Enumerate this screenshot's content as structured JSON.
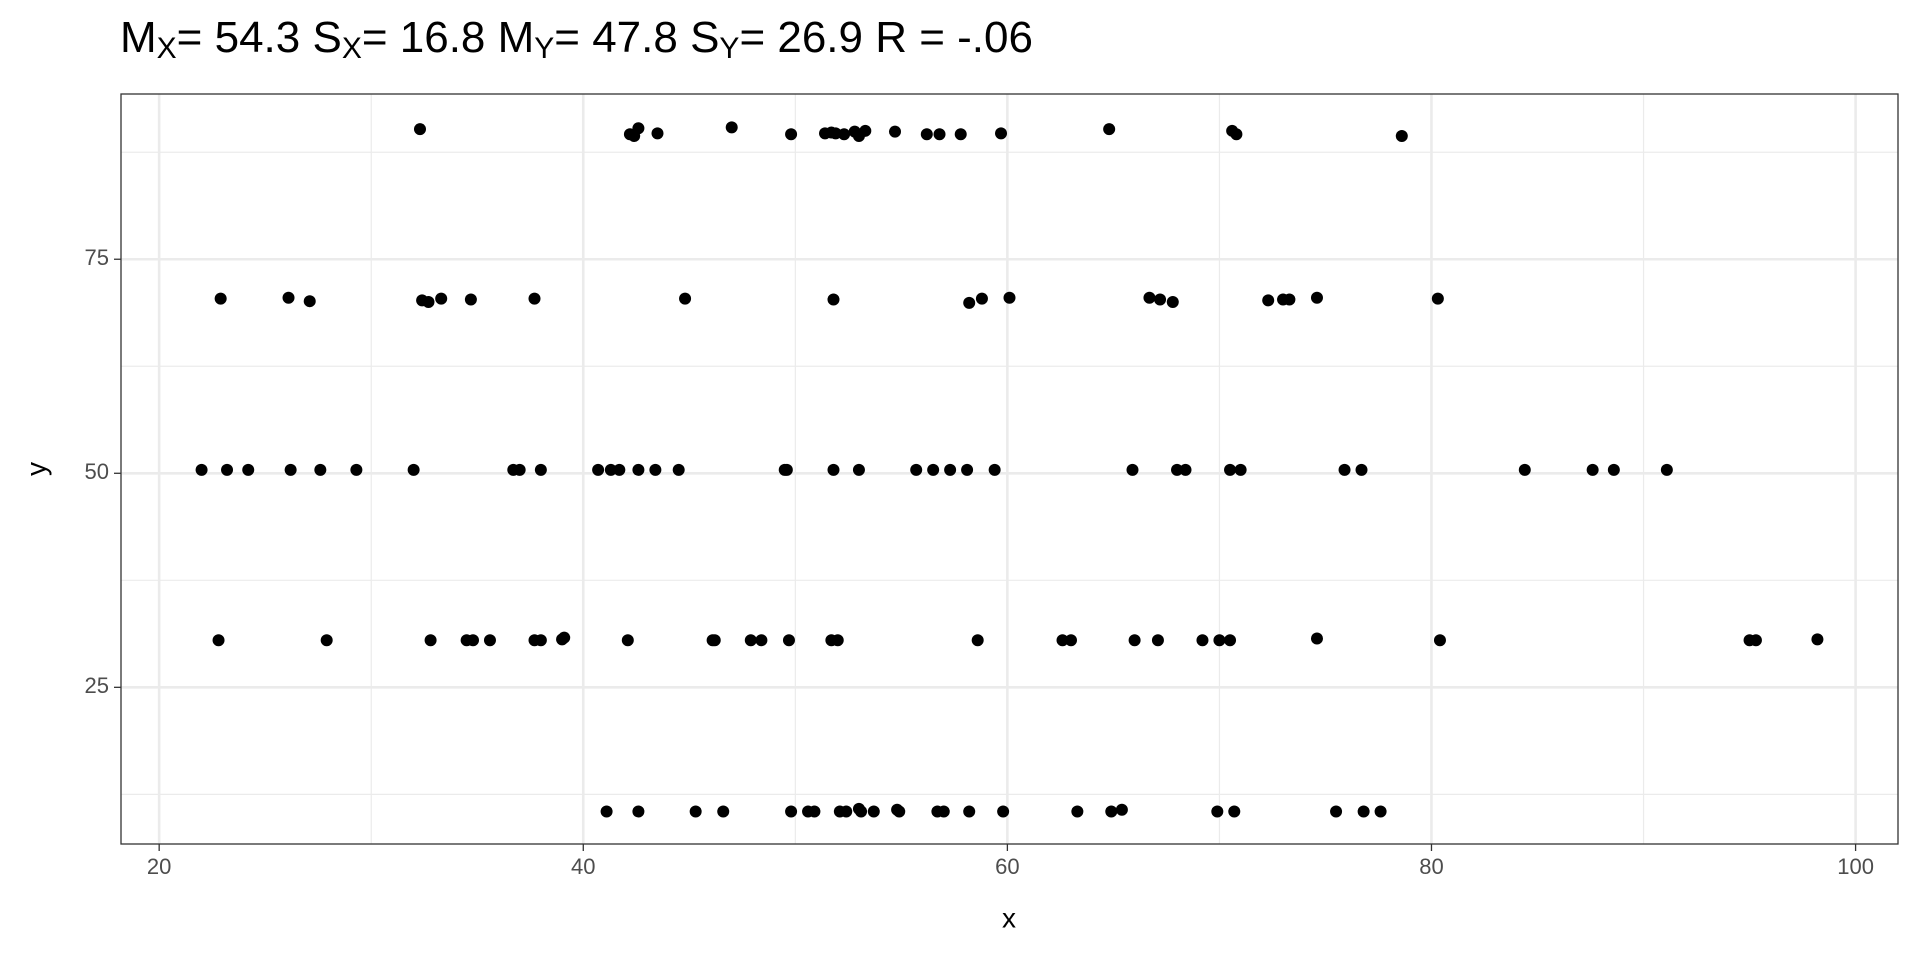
{
  "chart_data": {
    "type": "scatter",
    "title_segments": [
      {
        "text": "M"
      },
      {
        "sub": "X"
      },
      {
        "text": "= 54.3 S"
      },
      {
        "sub": "X"
      },
      {
        "text": "= 16.8 M"
      },
      {
        "sub": "Y"
      },
      {
        "text": "= 47.8 S"
      },
      {
        "sub": "Y"
      },
      {
        "text": "= 26.9 R = -.06"
      }
    ],
    "x_label": "x",
    "y_label": "y",
    "xlim": [
      18.2,
      102.0
    ],
    "ylim": [
      6.7,
      94.3
    ],
    "xticks": [
      20,
      40,
      60,
      80,
      100
    ],
    "yticks": [
      25,
      50,
      75
    ],
    "x_minor_grid": [
      30,
      50,
      70,
      90
    ],
    "y_minor_grid": [
      12.5,
      37.5,
      62.5,
      87.5
    ],
    "grid": true,
    "color": "#000000",
    "x": [
      32.3,
      42.2,
      42.4,
      42.6,
      43.5,
      47.0,
      49.8,
      51.4,
      51.7,
      51.9,
      52.3,
      52.8,
      53.0,
      53.3,
      54.7,
      56.2,
      56.8,
      57.8,
      59.7,
      64.8,
      70.6,
      70.8,
      78.6,
      22.9,
      26.1,
      27.1,
      32.4,
      32.7,
      33.3,
      34.7,
      37.7,
      44.8,
      51.8,
      58.2,
      58.8,
      60.1,
      66.7,
      67.2,
      67.8,
      72.3,
      73.0,
      73.3,
      74.6,
      80.3,
      22.0,
      23.2,
      24.2,
      26.2,
      27.6,
      29.3,
      32.0,
      36.7,
      37.0,
      38.0,
      40.7,
      41.3,
      41.7,
      42.6,
      43.4,
      44.5,
      49.5,
      49.6,
      51.8,
      53.0,
      55.7,
      56.5,
      57.3,
      58.1,
      59.4,
      65.9,
      68.0,
      68.4,
      70.5,
      71.0,
      75.9,
      76.7,
      84.4,
      87.6,
      88.6,
      91.1,
      22.8,
      27.9,
      32.8,
      34.5,
      34.8,
      35.6,
      37.7,
      38.0,
      39.0,
      39.1,
      42.1,
      46.1,
      46.2,
      47.9,
      48.4,
      49.7,
      51.7,
      52.0,
      58.6,
      62.6,
      63.0,
      66.0,
      67.1,
      69.2,
      70.0,
      70.5,
      74.6,
      80.4,
      95.0,
      95.3,
      98.2,
      41.1,
      42.6,
      45.3,
      46.6,
      49.8,
      50.6,
      50.9,
      52.1,
      52.4,
      53.0,
      53.1,
      53.7,
      54.8,
      54.9,
      56.7,
      57.0,
      58.2,
      59.8,
      63.3,
      64.9,
      65.4,
      69.9,
      70.7,
      75.5,
      76.8,
      77.6
    ],
    "y": [
      90.2,
      89.6,
      89.4,
      90.3,
      89.7,
      90.4,
      89.6,
      89.7,
      89.8,
      89.7,
      89.6,
      89.9,
      89.4,
      90.0,
      89.9,
      89.6,
      89.6,
      89.6,
      89.7,
      90.2,
      90.0,
      89.6,
      89.4,
      70.4,
      70.5,
      70.1,
      70.2,
      70.0,
      70.4,
      70.3,
      70.4,
      70.4,
      70.3,
      69.9,
      70.4,
      70.5,
      70.5,
      70.3,
      70.0,
      70.2,
      70.3,
      70.3,
      70.5,
      70.4,
      50.4,
      50.4,
      50.4,
      50.4,
      50.4,
      50.4,
      50.4,
      50.4,
      50.4,
      50.4,
      50.4,
      50.4,
      50.4,
      50.4,
      50.4,
      50.4,
      50.4,
      50.4,
      50.4,
      50.4,
      50.4,
      50.4,
      50.4,
      50.4,
      50.4,
      50.4,
      50.4,
      50.4,
      50.4,
      50.4,
      50.4,
      50.4,
      50.4,
      50.4,
      50.4,
      50.4,
      30.5,
      30.5,
      30.5,
      30.5,
      30.5,
      30.5,
      30.5,
      30.5,
      30.6,
      30.8,
      30.5,
      30.5,
      30.5,
      30.5,
      30.5,
      30.5,
      30.5,
      30.5,
      30.5,
      30.5,
      30.5,
      30.5,
      30.5,
      30.5,
      30.5,
      30.5,
      30.7,
      30.5,
      30.5,
      30.5,
      30.6,
      10.5,
      10.5,
      10.5,
      10.5,
      10.5,
      10.5,
      10.5,
      10.5,
      10.5,
      10.8,
      10.5,
      10.5,
      10.7,
      10.5,
      10.5,
      10.5,
      10.5,
      10.5,
      10.5,
      10.5,
      10.7,
      10.5,
      10.5,
      10.5,
      10.5,
      10.5
    ]
  }
}
